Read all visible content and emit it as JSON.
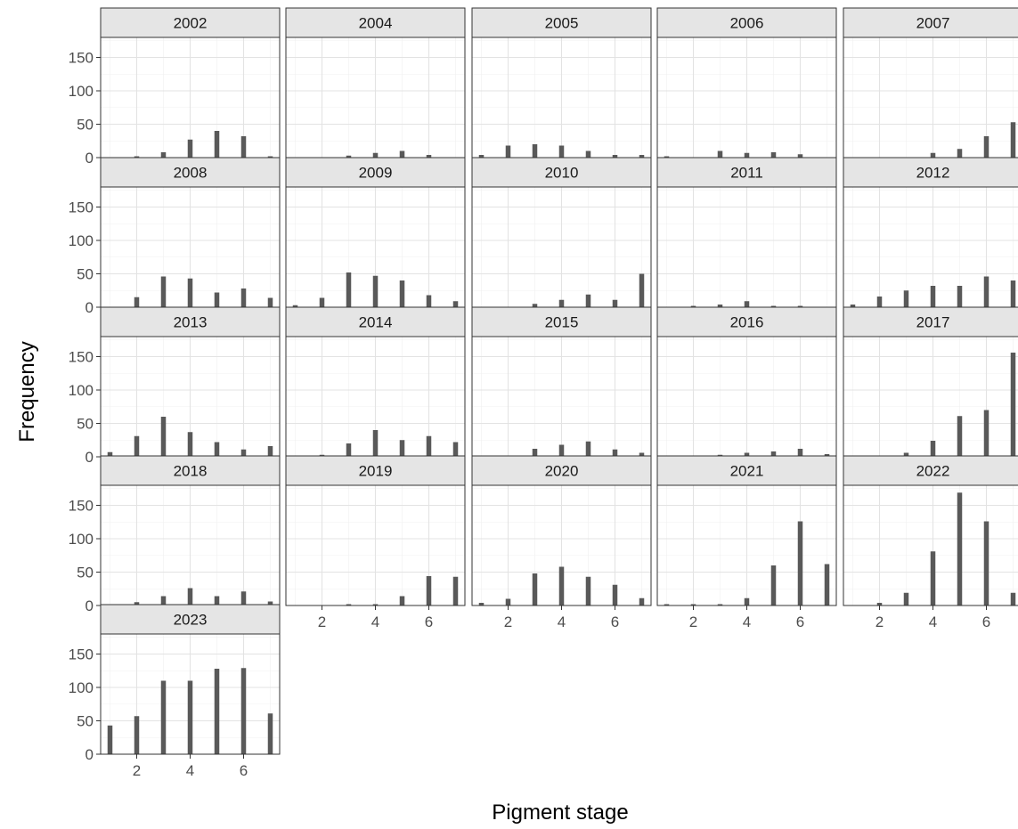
{
  "chart_data": {
    "type": "bar",
    "facet_layout": "wrap 5 columns",
    "xlabel": "Pigment stage",
    "ylabel": "Frequency",
    "x_categories": [
      1,
      2,
      3,
      4,
      5,
      6,
      7
    ],
    "x_ticks": [
      2,
      4,
      6
    ],
    "x_tick_labels": [
      "2",
      "4",
      "6"
    ],
    "ylim": [
      0,
      180
    ],
    "y_ticks": [
      0,
      50,
      100,
      150
    ],
    "y_tick_labels": [
      "0",
      "50",
      "100",
      "150"
    ],
    "grid": true,
    "bar_color": "#595959",
    "strip_fill": "#e5e5e5",
    "facets": [
      {
        "label": "2002",
        "values": [
          0,
          2,
          8,
          27,
          40,
          32,
          2
        ]
      },
      {
        "label": "2004",
        "values": [
          0,
          0,
          3,
          7,
          10,
          4,
          0
        ]
      },
      {
        "label": "2005",
        "values": [
          4,
          18,
          20,
          18,
          10,
          4,
          4
        ]
      },
      {
        "label": "2006",
        "values": [
          2,
          0,
          10,
          7,
          8,
          5,
          0
        ]
      },
      {
        "label": "2007",
        "values": [
          0,
          0,
          0,
          7,
          13,
          32,
          53
        ]
      },
      {
        "label": "2008",
        "values": [
          0,
          15,
          46,
          43,
          22,
          28,
          14
        ]
      },
      {
        "label": "2009",
        "values": [
          3,
          14,
          52,
          47,
          40,
          18,
          9
        ]
      },
      {
        "label": "2010",
        "values": [
          0,
          0,
          5,
          11,
          19,
          11,
          50
        ]
      },
      {
        "label": "2011",
        "values": [
          0,
          2,
          4,
          9,
          2,
          2,
          0
        ]
      },
      {
        "label": "2012",
        "values": [
          4,
          16,
          25,
          32,
          32,
          46,
          40
        ]
      },
      {
        "label": "2013",
        "values": [
          7,
          31,
          60,
          37,
          22,
          11,
          16
        ]
      },
      {
        "label": "2014",
        "values": [
          0,
          3,
          20,
          40,
          25,
          31,
          22
        ]
      },
      {
        "label": "2015",
        "values": [
          0,
          0,
          12,
          18,
          23,
          11,
          6
        ]
      },
      {
        "label": "2016",
        "values": [
          0,
          2,
          3,
          6,
          8,
          12,
          4
        ]
      },
      {
        "label": "2017",
        "values": [
          0,
          0,
          6,
          24,
          61,
          70,
          156
        ]
      },
      {
        "label": "2018",
        "values": [
          2,
          5,
          14,
          26,
          14,
          21,
          6
        ]
      },
      {
        "label": "2019",
        "values": [
          0,
          0,
          2,
          2,
          14,
          44,
          43
        ]
      },
      {
        "label": "2020",
        "values": [
          4,
          10,
          48,
          58,
          43,
          31,
          11
        ]
      },
      {
        "label": "2021",
        "values": [
          2,
          2,
          2,
          11,
          60,
          126,
          62
        ]
      },
      {
        "label": "2022",
        "values": [
          0,
          4,
          19,
          81,
          169,
          126,
          19
        ]
      },
      {
        "label": "2023",
        "values": [
          43,
          57,
          110,
          110,
          128,
          129,
          61
        ]
      }
    ]
  }
}
